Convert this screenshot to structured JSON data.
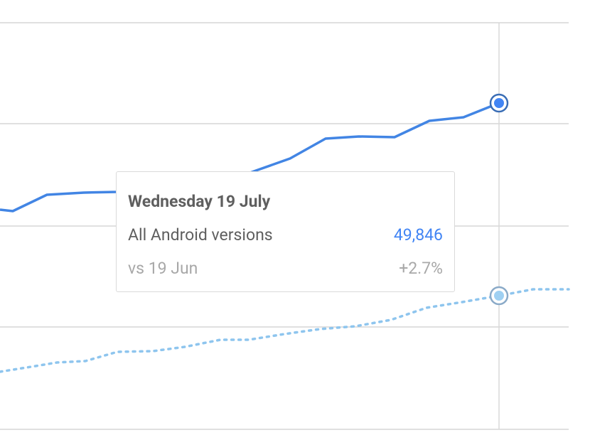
{
  "tooltip": {
    "title": "Wednesday 19 July",
    "series_name": "All Android versions",
    "series_value": "49,846",
    "compare_label": "vs 19 Jun",
    "compare_value": "+2.7%"
  }
}
